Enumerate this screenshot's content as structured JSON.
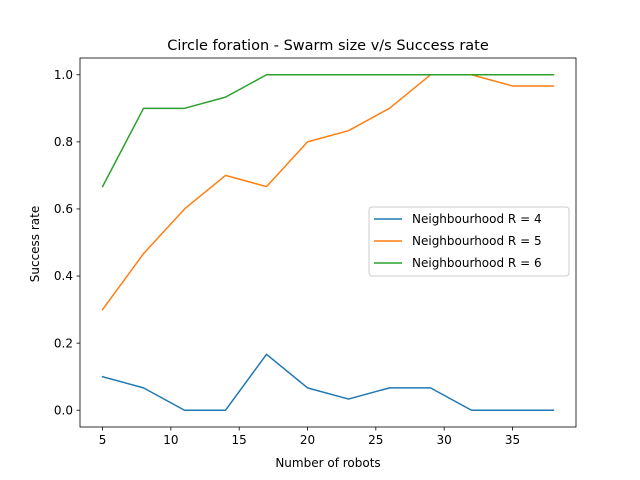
{
  "chart_data": {
    "type": "line",
    "title": "Circle foration - Swarm size v/s Success rate",
    "xlabel": "Number of robots",
    "ylabel": "Success rate",
    "xlim": [
      3.35,
      39.65
    ],
    "ylim": [
      -0.05,
      1.05
    ],
    "xticks": [
      5,
      10,
      15,
      20,
      25,
      30,
      35
    ],
    "yticks": [
      0.0,
      0.2,
      0.4,
      0.6,
      0.8,
      1.0
    ],
    "ytick_labels": [
      "0.0",
      "0.2",
      "0.4",
      "0.6",
      "0.8",
      "1.0"
    ],
    "grid": false,
    "legend_position": "center-right",
    "x": [
      5,
      8,
      11,
      14,
      17,
      20,
      23,
      26,
      29,
      32,
      35,
      38
    ],
    "series": [
      {
        "name": "Neighbourhood R = 4",
        "color": "#1f77b4",
        "values": [
          0.1,
          0.0667,
          0.0,
          0.0,
          0.1667,
          0.0667,
          0.0333,
          0.0667,
          0.0667,
          0.0,
          0.0,
          0.0
        ]
      },
      {
        "name": "Neighbourhood R = 5",
        "color": "#ff7f0e",
        "values": [
          0.3,
          0.4667,
          0.6,
          0.7,
          0.6667,
          0.8,
          0.8333,
          0.9,
          1.0,
          1.0,
          0.9667,
          0.9667
        ]
      },
      {
        "name": "Neighbourhood R = 6",
        "color": "#2ca02c",
        "values": [
          0.6667,
          0.9,
          0.9,
          0.9333,
          1.0,
          1.0,
          1.0,
          1.0,
          1.0,
          1.0,
          1.0,
          1.0
        ]
      }
    ]
  }
}
